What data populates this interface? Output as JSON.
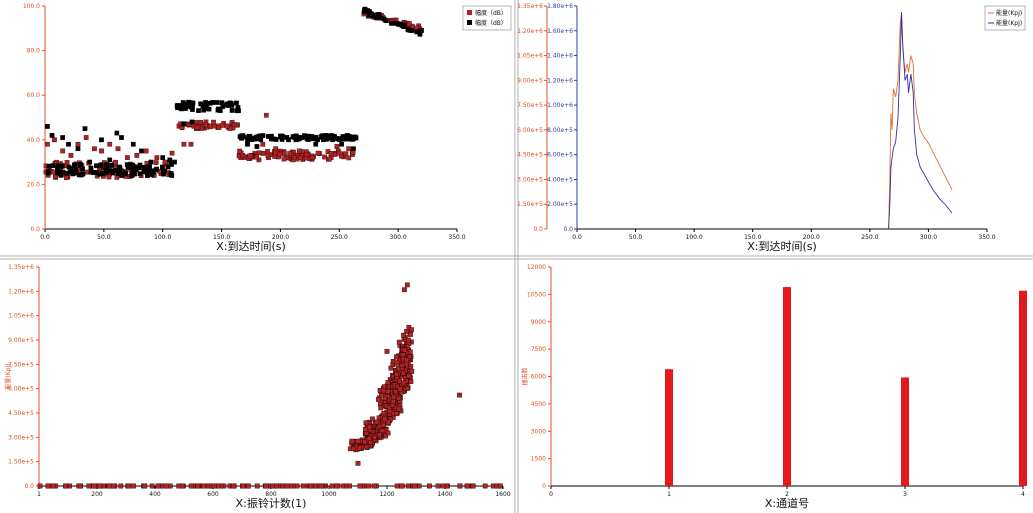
{
  "colors": {
    "red": "#b22222",
    "black": "#000000",
    "orange": "#e07030",
    "blue": "#3030a0",
    "bar": "#e31a1c",
    "axis_red": "#e05020",
    "axis_blue": "#3040a0"
  },
  "chart_data": [
    {
      "id": "c1",
      "type": "scatter",
      "xlabel": "X:到达时间(s)",
      "xlim": [
        0,
        350
      ],
      "ylim": [
        0,
        100
      ],
      "xticks": [
        "0.0",
        "50.0",
        "100.0",
        "150.0",
        "200.0",
        "250.0",
        "300.0",
        "350.0"
      ],
      "yticks": [
        "0.0",
        "20.0",
        "40.0",
        "60.0",
        "80.0",
        "100.0"
      ],
      "legend": [
        "幅度（dB）",
        "幅度（dB）"
      ],
      "series": [
        {
          "color": "red",
          "clusters": [
            {
              "x": [
                0,
                110
              ],
              "y": [
                23,
                30
              ],
              "n": 90
            },
            {
              "x": [
                112,
                165
              ],
              "y": [
                45,
                48
              ],
              "n": 45
            },
            {
              "x": [
                165,
                265
              ],
              "y": [
                31,
                35
              ],
              "n": 90
            },
            {
              "x": [
                270,
                320
              ],
              "y": [
                90,
                97
              ],
              "n": 40
            }
          ],
          "extras": [
            [
              2,
              38
            ],
            [
              8,
              40
            ],
            [
              15,
              35
            ],
            [
              22,
              33
            ],
            [
              28,
              38
            ],
            [
              35,
              41
            ],
            [
              42,
              36
            ],
            [
              48,
              35
            ],
            [
              55,
              38
            ],
            [
              62,
              36
            ],
            [
              70,
              32
            ],
            [
              78,
              33
            ],
            [
              86,
              35
            ],
            [
              95,
              32
            ],
            [
              102,
              30
            ],
            [
              108,
              34
            ],
            [
              118,
              38
            ],
            [
              124,
              38
            ],
            [
              172,
              40
            ],
            [
              188,
              51
            ],
            [
              185,
              38
            ],
            [
              196,
              36
            ],
            [
              216,
              35
            ],
            [
              232,
              34
            ],
            [
              248,
              37
            ],
            [
              258,
              36
            ]
          ]
        },
        {
          "color": "black",
          "clusters": [
            {
              "x": [
                0,
                110
              ],
              "y": [
                24,
                29
              ],
              "n": 100
            },
            {
              "x": [
                112,
                165
              ],
              "y": [
                53,
                57
              ],
              "n": 45
            },
            {
              "x": [
                165,
                265
              ],
              "y": [
                40,
                42
              ],
              "n": 110
            },
            {
              "x": [
                270,
                320
              ],
              "y": [
                88,
                98
              ],
              "n": 40
            }
          ],
          "extras": [
            [
              2,
              46
            ],
            [
              6,
              42
            ],
            [
              15,
              41
            ],
            [
              20,
              38
            ],
            [
              28,
              36
            ],
            [
              34,
              45
            ],
            [
              38,
              30
            ],
            [
              48,
              40
            ],
            [
              55,
              31
            ],
            [
              61,
              43
            ],
            [
              65,
              41
            ],
            [
              75,
              38
            ],
            [
              82,
              35
            ],
            [
              90,
              30
            ],
            [
              100,
              32
            ],
            [
              106,
              31
            ],
            [
              110,
              30
            ],
            [
              118,
              47
            ],
            [
              125,
              48
            ],
            [
              172,
              38
            ],
            [
              180,
              37
            ],
            [
              230,
              38
            ],
            [
              252,
              38
            ],
            [
              262,
              36
            ]
          ]
        }
      ]
    },
    {
      "id": "c2",
      "type": "line",
      "xlabel": "X:到达时间(s)",
      "xlim": [
        0,
        350
      ],
      "yticks_left": [
        "0.0",
        "1.50e+5",
        "3.00e+5",
        "4.50e+5",
        "6.00e+5",
        "7.50e+5",
        "9.00e+5",
        "1.05e+6",
        "1.20e+6",
        "1.35e+6"
      ],
      "yticks_right": [
        "0.0",
        "2.00e+5",
        "4.00e+5",
        "6.00e+5",
        "8.00e+5",
        "1.00e+6",
        "1.20e+6",
        "1.40e+6",
        "1.60e+6",
        "1.80e+6"
      ],
      "xticks": [
        "0.0",
        "50.0",
        "100.0",
        "150.0",
        "200.0",
        "250.0",
        "300.0",
        "350.0"
      ],
      "legend": [
        "能量(KpJ)",
        "能量(KpJ)"
      ],
      "series": [
        {
          "name": "orange",
          "axis": "left",
          "ylim": [
            0,
            1350000
          ],
          "points": [
            [
              266,
              0
            ],
            [
              267,
              300000
            ],
            [
              268,
              700000
            ],
            [
              269,
              600000
            ],
            [
              270,
              850000
            ],
            [
              272,
              800000
            ],
            [
              274,
              900000
            ],
            [
              276,
              1250000
            ],
            [
              277,
              1300000
            ],
            [
              278,
              1100000
            ],
            [
              280,
              950000
            ],
            [
              282,
              1000000
            ],
            [
              283,
              950000
            ],
            [
              285,
              1050000
            ],
            [
              287,
              1000000
            ],
            [
              288,
              820000
            ],
            [
              290,
              700000
            ],
            [
              293,
              600000
            ],
            [
              296,
              560000
            ],
            [
              300,
              520000
            ],
            [
              305,
              450000
            ],
            [
              310,
              380000
            ],
            [
              315,
              310000
            ],
            [
              320,
              240000
            ]
          ]
        },
        {
          "name": "blue",
          "axis": "right",
          "ylim": [
            0,
            1800000
          ],
          "points": [
            [
              266,
              0
            ],
            [
              267,
              200000
            ],
            [
              268,
              500000
            ],
            [
              270,
              650000
            ],
            [
              272,
              700000
            ],
            [
              274,
              900000
            ],
            [
              276,
              1400000
            ],
            [
              277,
              1750000
            ],
            [
              278,
              1500000
            ],
            [
              280,
              1200000
            ],
            [
              282,
              1250000
            ],
            [
              283,
              1100000
            ],
            [
              285,
              1250000
            ],
            [
              287,
              1100000
            ],
            [
              288,
              800000
            ],
            [
              290,
              600000
            ],
            [
              293,
              500000
            ],
            [
              296,
              450000
            ],
            [
              300,
              380000
            ],
            [
              305,
              300000
            ],
            [
              310,
              240000
            ],
            [
              315,
              190000
            ],
            [
              320,
              130000
            ]
          ]
        }
      ]
    },
    {
      "id": "c3",
      "type": "scatter",
      "xlabel": "X:振铃计数(1)",
      "ylabel": "能量(KpJ)",
      "xlim": [
        0,
        1600
      ],
      "ylim": [
        0,
        1350000
      ],
      "xticks": [
        "1",
        "200",
        "400",
        "600",
        "800",
        "1000",
        "1200",
        "1400",
        "1600"
      ],
      "yticks": [
        "0.0",
        "1.50e+5",
        "3.00e+5",
        "4.50e+5",
        "6.00e+5",
        "7.50e+5",
        "9.00e+5",
        "1.05e+6",
        "1.20e+6",
        "1.35e+6"
      ],
      "baseline": {
        "x": [
          0,
          1600
        ],
        "y": 0,
        "n": 160
      },
      "clusters": [
        {
          "x": [
            1080,
            1150
          ],
          "y": [
            220000,
            300000
          ],
          "n": 60
        },
        {
          "x": [
            1130,
            1200
          ],
          "y": [
            250000,
            450000
          ],
          "n": 90
        },
        {
          "x": [
            1180,
            1240
          ],
          "y": [
            350000,
            700000
          ],
          "n": 140
        },
        {
          "x": [
            1220,
            1280
          ],
          "y": [
            500000,
            900000
          ],
          "n": 140
        },
        {
          "x": [
            1240,
            1290
          ],
          "y": [
            700000,
            1000000
          ],
          "n": 40
        }
      ],
      "extras": [
        [
          1260,
          1210000
        ],
        [
          1270,
          1240000
        ],
        [
          1450,
          560000
        ],
        [
          1100,
          140000
        ],
        [
          1200,
          830000
        ]
      ]
    },
    {
      "id": "c4",
      "type": "bar",
      "xlabel": "X:通道号",
      "ylabel": "撞击数",
      "xlim": [
        0,
        4
      ],
      "ylim": [
        0,
        12000
      ],
      "xticks": [
        "0",
        "1",
        "2",
        "3",
        "4"
      ],
      "yticks": [
        "0",
        "1500",
        "3000",
        "4500",
        "6000",
        "7500",
        "9000",
        "10500",
        "12000"
      ],
      "categories": [
        1,
        2,
        3,
        4
      ],
      "values": [
        6400,
        10900,
        5950,
        10700
      ]
    }
  ]
}
